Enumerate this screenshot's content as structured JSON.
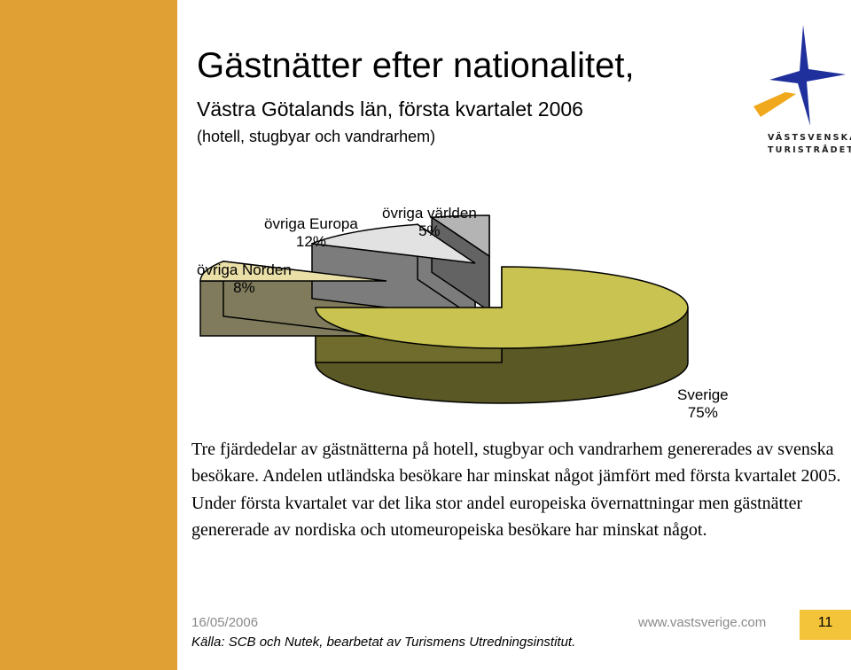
{
  "slide": {
    "title": "Gästnätter efter nationalitet,",
    "subtitle": "Västra Götalands län, första kvartalet 2006",
    "subtitle2": "(hotell, stugbyar och vandrarhem)"
  },
  "logo": {
    "line1": "VÄSTSVENSKA",
    "line2": "TURISTRÅDET",
    "colors": {
      "star": "#1f2f9c",
      "accent": "#f0a81c"
    }
  },
  "chart_data": {
    "type": "pie",
    "three_d": true,
    "slices": [
      {
        "name": "Sverige",
        "label": "75%",
        "value": 75,
        "color": "#c9c451"
      },
      {
        "name": "övriga Norden",
        "label": "8%",
        "value": 8,
        "color": "#e9dfa7"
      },
      {
        "name": "övriga Europa",
        "label": "12%",
        "value": 12,
        "color": "#e2e2e2"
      },
      {
        "name": "övriga världen",
        "label": "5%",
        "value": 5,
        "color": "#b4b4b4"
      }
    ]
  },
  "body": {
    "paragraph": "Tre fjärdedelar av gästnätterna på hotell, stugbyar och vandrarhem genererades av svenska besökare. Andelen utländska besökare har minskat något jämfört med första kvartalet 2005. Under första kvartalet var det lika stor andel europeiska övernattningar men gästnätter genererade av nordiska och utomeuropeiska besökare har minskat något."
  },
  "footer": {
    "date": "16/05/2006",
    "url": "www.vastsverige.com",
    "page": "11",
    "source": "Källa: SCB och Nutek, bearbetat av Turismens Utredningsinstitut."
  },
  "colors": {
    "left_bar": "#e0a034",
    "page_box": "#f3c33a"
  }
}
